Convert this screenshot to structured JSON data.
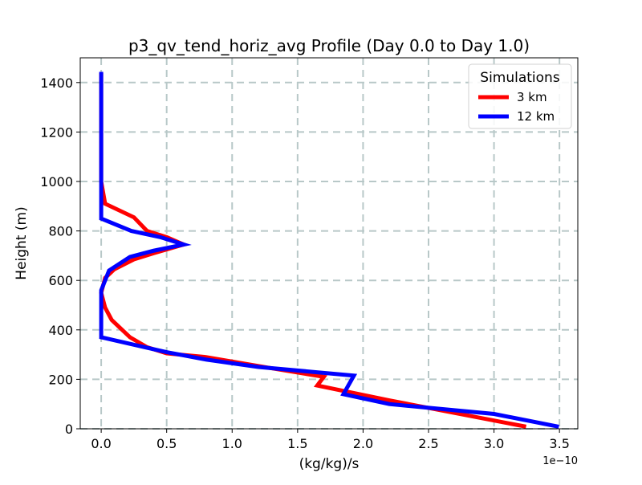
{
  "chart_data": {
    "type": "line",
    "title": "p3_qv_tend_horiz_avg Profile (Day 0.0 to Day 1.0)",
    "xlabel": "(kg/kg)/s",
    "ylabel": "Height (m)",
    "x_offset_label": "1e−10",
    "x_scale": 1e-10,
    "xlim": [
      -0.16,
      3.64
    ],
    "ylim": [
      0,
      1500
    ],
    "x_ticks": [
      0.0,
      0.5,
      1.0,
      1.5,
      2.0,
      2.5,
      3.0,
      3.5
    ],
    "x_tick_labels": [
      "0.0",
      "0.5",
      "1.0",
      "1.5",
      "2.0",
      "2.5",
      "3.0",
      "3.5"
    ],
    "y_ticks": [
      0,
      200,
      400,
      600,
      800,
      1000,
      1200,
      1400
    ],
    "y_tick_labels": [
      "0",
      "200",
      "400",
      "600",
      "800",
      "1000",
      "1200",
      "1400"
    ],
    "grid": true,
    "legend": {
      "title": "Simulations",
      "placement": "top-right"
    },
    "series": [
      {
        "name": "3 km",
        "color": "#ff0000",
        "points": [
          [
            3.23,
            10
          ],
          [
            2.2,
            115
          ],
          [
            1.65,
            175
          ],
          [
            1.7,
            210
          ],
          [
            1.3,
            245
          ],
          [
            0.8,
            290
          ],
          [
            0.5,
            305
          ],
          [
            0.35,
            330
          ],
          [
            0.22,
            370
          ],
          [
            0.08,
            440
          ],
          [
            0.03,
            490
          ],
          [
            0.0,
            550
          ],
          [
            0.03,
            610
          ],
          [
            0.1,
            645
          ],
          [
            0.25,
            685
          ],
          [
            0.4,
            710
          ],
          [
            0.63,
            745
          ],
          [
            0.5,
            775
          ],
          [
            0.35,
            800
          ],
          [
            0.25,
            855
          ],
          [
            0.03,
            910
          ],
          [
            0.0,
            1000
          ],
          [
            0.0,
            1200
          ],
          [
            0.0,
            1430
          ]
        ]
      },
      {
        "name": "12 km",
        "color": "#0000ff",
        "points": [
          [
            3.48,
            10
          ],
          [
            3.0,
            60
          ],
          [
            2.2,
            100
          ],
          [
            1.85,
            140
          ],
          [
            1.93,
            215
          ],
          [
            1.2,
            250
          ],
          [
            0.8,
            280
          ],
          [
            0.5,
            310
          ],
          [
            0.33,
            330
          ],
          [
            0.0,
            370
          ],
          [
            0.0,
            500
          ],
          [
            0.0,
            560
          ],
          [
            0.03,
            600
          ],
          [
            0.06,
            640
          ],
          [
            0.22,
            695
          ],
          [
            0.4,
            720
          ],
          [
            0.63,
            745
          ],
          [
            0.45,
            775
          ],
          [
            0.23,
            800
          ],
          [
            0.0,
            850
          ],
          [
            0.0,
            1000
          ],
          [
            0.0,
            1200
          ],
          [
            0.0,
            1435
          ]
        ]
      }
    ]
  }
}
